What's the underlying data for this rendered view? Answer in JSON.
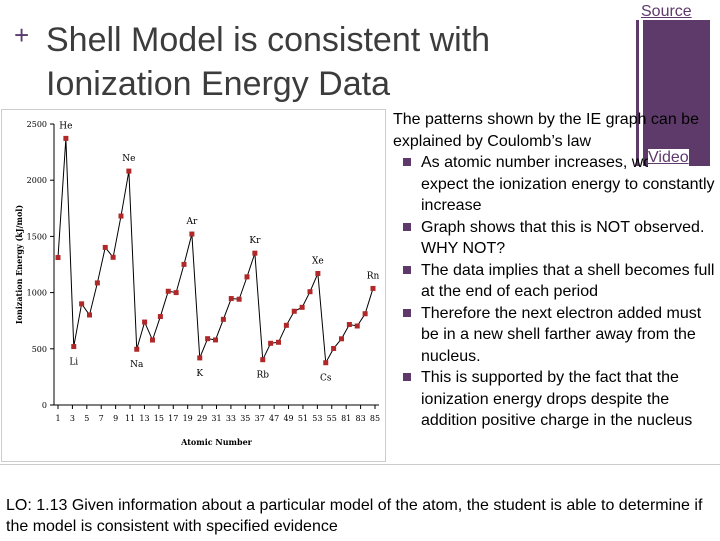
{
  "header": {
    "plus_symbol": "+",
    "title": "Shell Model is consistent with Ionization Energy Data"
  },
  "links": {
    "source": "Source",
    "video": "Video"
  },
  "body": {
    "intro": "The patterns  shown by the IE graph can be explained by Coulomb’s law",
    "bullets": [
      "As atomic number increases, would expect the ionization energy to constantly increase",
      "Graph shows that this is NOT observed. WHY NOT?",
      "The data implies that a shell becomes full at the end of each period",
      "Therefore the next electron added must be in a new shell farther away from the nucleus.",
      "This is supported by the fact that the ionization energy drops despite the addition positive charge in the nucleus"
    ]
  },
  "learning_objective": "LO: 1.13 Given information about a particular model of the atom, the student is able to determine if the model is consistent with specified evidence",
  "colors": {
    "accent": "#5e3a6a",
    "data_points": "#b02828"
  },
  "chart_data": {
    "type": "line",
    "title": "",
    "xlabel": "Atomic Number",
    "ylabel": "Ionization Energy (kJ/mol)",
    "xlim": [
      0,
      87
    ],
    "ylim": [
      0,
      2500
    ],
    "xticks": [
      "1",
      "3",
      "5",
      "7",
      "9",
      "11",
      "13",
      "15",
      "17",
      "19",
      "29",
      "31",
      "33",
      "35",
      "37",
      "47",
      "49",
      "51",
      "53",
      "55",
      "81",
      "83",
      "85"
    ],
    "yticks": [
      "0",
      "500",
      "1000",
      "1500",
      "2000",
      "2500"
    ],
    "series": [
      {
        "values": [
          1312,
          2372,
          520,
          900,
          801,
          1086,
          1402,
          1314,
          1681,
          2081,
          496,
          738,
          578,
          787,
          1012,
          1000,
          1251,
          1521,
          419,
          590,
          579,
          762,
          947,
          941,
          1140,
          1351,
          403,
          549,
          558,
          709,
          834,
          869,
          1008,
          1170,
          376,
          503,
          589,
          716,
          703,
          812,
          1037
        ]
      }
    ],
    "element_labels": [
      {
        "text": "He",
        "index": 1
      },
      {
        "text": "Ne",
        "index": 9
      },
      {
        "text": "Ar",
        "index": 17
      },
      {
        "text": "Kr",
        "index": 25
      },
      {
        "text": "Xe",
        "index": 33
      },
      {
        "text": "Rn",
        "index": 40
      },
      {
        "text": "Li",
        "index": 2
      },
      {
        "text": "Na",
        "index": 10
      },
      {
        "text": "K",
        "index": 18
      },
      {
        "text": "Rb",
        "index": 26
      },
      {
        "text": "Cs",
        "index": 34
      }
    ]
  }
}
